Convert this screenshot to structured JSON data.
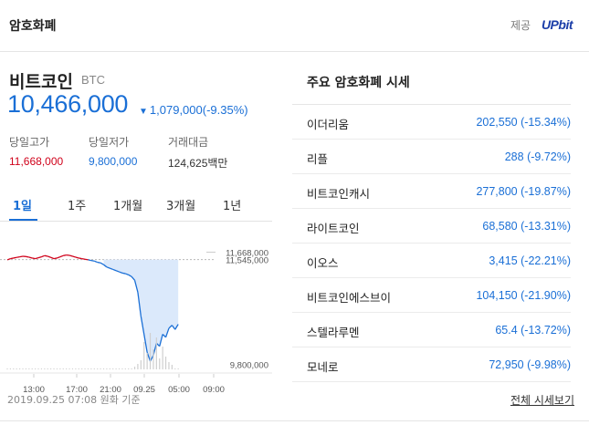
{
  "header": {
    "title": "암호화폐",
    "provider_label": "제공",
    "provider_logo_text": "UPbit"
  },
  "coin": {
    "name": "비트코인",
    "symbol": "BTC",
    "price": "10,466,000",
    "change": "1,079,000(-9.35%)",
    "change_direction": "down"
  },
  "stats": [
    {
      "label": "당일고가",
      "value": "11,668,000"
    },
    {
      "label": "당일저가",
      "value": "9,800,000"
    },
    {
      "label": "거래대금",
      "value": "124,625백만"
    }
  ],
  "tabs": [
    {
      "label": "1일",
      "active": true
    },
    {
      "label": "1주",
      "active": false
    },
    {
      "label": "1개월",
      "active": false
    },
    {
      "label": "3개월",
      "active": false
    },
    {
      "label": "1년",
      "active": false
    }
  ],
  "chart_data": {
    "type": "line",
    "y_ticks": [
      "11,668,000",
      "11,545,000",
      "9,800,000"
    ],
    "x_ticks": [
      "13:00",
      "17:00",
      "21:00",
      "09.25",
      "05:00",
      "09:00"
    ],
    "ylim": [
      9700000,
      11750000
    ],
    "reference_value": 11545000,
    "price_series": [
      11540000,
      11560000,
      11570000,
      11580000,
      11590000,
      11600000,
      11595000,
      11585000,
      11570000,
      11560000,
      11575000,
      11590000,
      11610000,
      11600000,
      11580000,
      11560000,
      11570000,
      11590000,
      11610000,
      11620000,
      11615000,
      11600000,
      11585000,
      11570000,
      11560000,
      11550000,
      11540000,
      11530000,
      11520000,
      11500000,
      11490000,
      11460000,
      11420000,
      11400000,
      11380000,
      11360000,
      11340000,
      11320000,
      11310000,
      11290000,
      11260000,
      11200000,
      11000000,
      10600000,
      10300000,
      10000000,
      9850000,
      9950000,
      10150000,
      10100000,
      10300000,
      10250000,
      10400000,
      10450000,
      10380000,
      10466000
    ],
    "colors": {
      "up": "#d0021b",
      "down": "#1a6fd6",
      "fill": "#dbe9fb",
      "volume": "#cfcfcf"
    }
  },
  "footer_note": "2019.09.25 07:08 원화 기준",
  "market": {
    "title": "주요 암호화폐 시세",
    "items": [
      {
        "name": "이더리움",
        "price": "202,550 (-15.34%)"
      },
      {
        "name": "리플",
        "price": "288 (-9.72%)"
      },
      {
        "name": "비트코인캐시",
        "price": "277,800 (-19.87%)"
      },
      {
        "name": "라이트코인",
        "price": "68,580 (-13.31%)"
      },
      {
        "name": "이오스",
        "price": "3,415 (-22.21%)"
      },
      {
        "name": "비트코인에스브이",
        "price": "104,150 (-21.90%)"
      },
      {
        "name": "스텔라루멘",
        "price": "65.4 (-13.72%)"
      },
      {
        "name": "모네로",
        "price": "72,950 (-9.98%)"
      }
    ],
    "more_label": "전체 시세보기"
  }
}
